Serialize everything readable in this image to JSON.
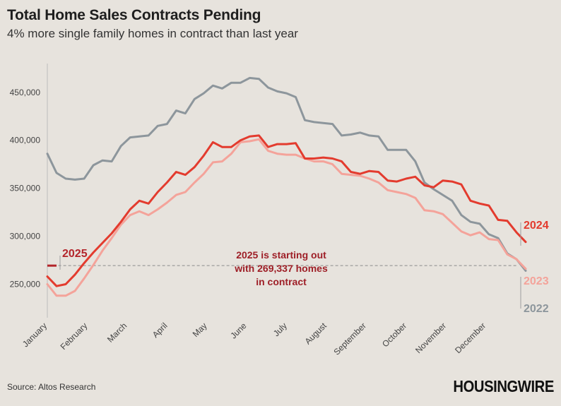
{
  "title": "Total Home Sales Contracts Pending",
  "subtitle": "4% more single family homes in contract than last year",
  "source": "Source: Altos Research",
  "logo": "HOUSINGWIRE",
  "colors": {
    "2022": "#8d969c",
    "2023": "#f4a39a",
    "2024": "#e33b2e",
    "2025": "#b3252b",
    "annotation": "#9e1f27",
    "grid": "#a8a8a8"
  },
  "chart_data": {
    "type": "line",
    "title": "Total Home Sales Contracts Pending",
    "subtitle": "4% more single family homes in contract than last year",
    "x_unit": "week of year",
    "xlim": [
      1,
      52
    ],
    "ylim": [
      215000,
      480000
    ],
    "y_ticks": [
      250000,
      300000,
      350000,
      400000,
      450000
    ],
    "y_tick_labels": [
      "250,000",
      "300,000",
      "350,000",
      "400,000",
      "450,000"
    ],
    "x_ticks": [
      1,
      5.4,
      9.7,
      14.1,
      18.4,
      22.7,
      27.1,
      31.4,
      35.7,
      40.1,
      44.4,
      48.7
    ],
    "x_tick_labels": [
      "January",
      "February",
      "March",
      "April",
      "May",
      "June",
      "July",
      "August",
      "September",
      "October",
      "November",
      "December"
    ],
    "grid": false,
    "legend": "direct labels at line ends",
    "series": [
      {
        "name": "2022",
        "color": "#8d969c",
        "values": [
          386000,
          366000,
          360000,
          359000,
          360000,
          374000,
          379000,
          378000,
          394000,
          403000,
          404000,
          405000,
          415000,
          417000,
          431000,
          428000,
          443000,
          449000,
          457000,
          454000,
          460000,
          460000,
          465000,
          464000,
          455000,
          451000,
          449000,
          445000,
          421000,
          419000,
          418000,
          417000,
          405000,
          406000,
          408000,
          405000,
          404000,
          390000,
          390000,
          390000,
          378000,
          356000,
          349000,
          343000,
          337000,
          322000,
          315000,
          313000,
          302000,
          298000,
          282000,
          276000,
          264000
        ]
      },
      {
        "name": "2023",
        "color": "#f4a39a",
        "values": [
          250000,
          238000,
          238000,
          243000,
          256000,
          270000,
          285000,
          298000,
          312000,
          322000,
          326000,
          322000,
          328000,
          335000,
          343000,
          346000,
          356000,
          365000,
          377000,
          378000,
          386000,
          398000,
          399000,
          401000,
          389000,
          386000,
          385000,
          385000,
          381000,
          378000,
          378000,
          375000,
          365000,
          364000,
          363000,
          360000,
          356000,
          348000,
          346000,
          344000,
          340000,
          327000,
          326000,
          323000,
          314000,
          305000,
          301000,
          304000,
          297000,
          296000,
          281000,
          276000,
          266000
        ]
      },
      {
        "name": "2024",
        "color": "#e33b2e",
        "values": [
          258000,
          248000,
          250000,
          260000,
          272000,
          283000,
          293000,
          303000,
          315000,
          328000,
          337000,
          334000,
          346000,
          356000,
          367000,
          364000,
          372000,
          384000,
          398000,
          393000,
          393000,
          400000,
          404000,
          405000,
          393000,
          396000,
          396000,
          397000,
          381000,
          381000,
          382000,
          381000,
          378000,
          367000,
          365000,
          368000,
          367000,
          358000,
          357000,
          360000,
          362000,
          353000,
          351000,
          358000,
          357000,
          354000,
          337000,
          334000,
          332000,
          317000,
          316000,
          304000,
          294000
        ]
      },
      {
        "name": "2025",
        "color": "#b3252b",
        "values": [
          269337,
          269337
        ]
      }
    ],
    "reference_line": {
      "value": 269337,
      "style": "dashed"
    },
    "annotations": [
      {
        "text": "2025",
        "target": "2025"
      },
      {
        "text": "2025 is starting out\nwith 269,337 homes\nin contract"
      }
    ],
    "end_labels": [
      "2024",
      "2023",
      "2022"
    ]
  }
}
